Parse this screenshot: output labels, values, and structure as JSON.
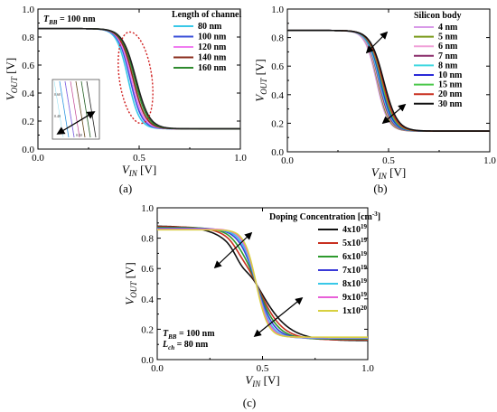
{
  "chart_data": [
    {
      "id": "a",
      "type": "line",
      "panel_label": "(a)",
      "xlabel": "V_IN [V]",
      "ylabel": "V_OUT [V]",
      "xlabel_main": "V",
      "xlabel_sub": "IN",
      "xlabel_unit": " [V]",
      "ylabel_main": "V",
      "ylabel_sub": "OUT",
      "ylabel_unit": " [V]",
      "xlim": [
        0,
        1.0
      ],
      "ylim": [
        0.0,
        1.0
      ],
      "xticks": [
        "0.0",
        "0.5",
        "1.0"
      ],
      "yticks": [
        "0.0",
        "0.2",
        "0.4",
        "0.6",
        "0.8",
        "1.0"
      ],
      "annotation": {
        "main": "T",
        "sub": "BB",
        "rest": " = 100 nm"
      },
      "legend_title": "Length of channel",
      "legend_position": "top-right",
      "vh": 0.86,
      "vl": 0.145,
      "series": [
        {
          "name": "80 nm",
          "color": "#38c8e8",
          "mid": 0.445,
          "steep": 0.028
        },
        {
          "name": "100 nm",
          "color": "#3a4fd8",
          "mid": 0.455,
          "steep": 0.029
        },
        {
          "name": "120 nm",
          "color": "#f07cf0",
          "mid": 0.462,
          "steep": 0.03
        },
        {
          "name": "140 nm",
          "color": "#8a2c1c",
          "mid": 0.47,
          "steep": 0.031
        },
        {
          "name": "160 nm",
          "color": "#2e8a2e",
          "mid": 0.478,
          "steep": 0.032
        }
      ],
      "extra_series": [
        {
          "color": "#222222",
          "mid": 0.484,
          "steep": 0.033
        }
      ],
      "inset_ticks": [
        "0.60",
        "0.40",
        "0.50"
      ]
    },
    {
      "id": "b",
      "type": "line",
      "panel_label": "(b)",
      "xlabel": "V_IN [V]",
      "ylabel": "V_OUT [V]",
      "xlabel_main": "V",
      "xlabel_sub": "IN",
      "xlabel_unit": " [V]",
      "ylabel_main": "V",
      "ylabel_sub": "OUT",
      "ylabel_unit": " [V]",
      "xlim": [
        0,
        1.0
      ],
      "ylim": [
        0.0,
        1.0
      ],
      "xticks": [
        "0.0",
        "0.5",
        "1.0"
      ],
      "yticks": [
        "0.0",
        "0.2",
        "0.4",
        "0.6",
        "0.8",
        "1.0"
      ],
      "legend_title": "Silicon body",
      "legend_position": "top-right",
      "vh": 0.85,
      "vl": 0.145,
      "series": [
        {
          "name": "4 nm",
          "color": "#d89ae8",
          "mid": 0.44,
          "steep": 0.028
        },
        {
          "name": "5 nm",
          "color": "#7a9a1a",
          "mid": 0.445,
          "steep": 0.028
        },
        {
          "name": "6 nm",
          "color": "#f0a0d8",
          "mid": 0.448,
          "steep": 0.029
        },
        {
          "name": "7 nm",
          "color": "#8a2c6a",
          "mid": 0.452,
          "steep": 0.029
        },
        {
          "name": "8 nm",
          "color": "#40d8e0",
          "mid": 0.455,
          "steep": 0.03
        },
        {
          "name": "10 nm",
          "color": "#2a2ad8",
          "mid": 0.46,
          "steep": 0.03
        },
        {
          "name": "15 nm",
          "color": "#4ac84a",
          "mid": 0.465,
          "steep": 0.031
        },
        {
          "name": "20 nm",
          "color": "#c83020",
          "mid": 0.47,
          "steep": 0.032
        },
        {
          "name": "30 nm",
          "color": "#111111",
          "mid": 0.476,
          "steep": 0.033
        }
      ]
    },
    {
      "id": "c",
      "type": "line",
      "panel_label": "(c)",
      "xlabel": "V_IN [V]",
      "ylabel": "V_OUT [V]",
      "xlabel_main": "V",
      "xlabel_sub": "IN",
      "xlabel_unit": " [V]",
      "ylabel_main": "V",
      "ylabel_sub": "OUT",
      "ylabel_unit": " [V]",
      "xlim": [
        0,
        1.0
      ],
      "ylim": [
        0.0,
        1.0
      ],
      "xticks": [
        "0.0",
        "0.5",
        "1.0"
      ],
      "yticks": [
        "0.0",
        "0.2",
        "0.4",
        "0.6",
        "0.8",
        "1.0"
      ],
      "legend_title": "Doping Concentration [cm-3]",
      "legend_title_main": "Doping Concentration [cm",
      "legend_title_sup": "-3",
      "legend_title_end": "]",
      "legend_position": "top-right",
      "annotation_lines": [
        {
          "main": "T",
          "sub": "BB",
          "rest": " = 100 nm"
        },
        {
          "main": "L",
          "sub": "ch",
          "rest": " = 80 nm"
        }
      ],
      "series": [
        {
          "name": "4x10^19",
          "base": "4x10",
          "exp": "19",
          "color": "#111111",
          "vh": 0.88,
          "vl": 0.125,
          "mid": 0.47,
          "steep": 0.075,
          "shoulder": 0.18
        },
        {
          "name": "5x10^19",
          "base": "5x10",
          "exp": "19",
          "color": "#c83020",
          "vh": 0.875,
          "vl": 0.13,
          "mid": 0.47,
          "steep": 0.06,
          "shoulder": 0.1
        },
        {
          "name": "6x10^19",
          "base": "6x10",
          "exp": "19",
          "color": "#2e9a2e",
          "vh": 0.87,
          "vl": 0.135,
          "mid": 0.47,
          "steep": 0.05,
          "shoulder": 0.05
        },
        {
          "name": "7x10^19",
          "base": "7x10",
          "exp": "19",
          "color": "#3a3ad8",
          "vh": 0.865,
          "vl": 0.14,
          "mid": 0.47,
          "steep": 0.042,
          "shoulder": 0.0
        },
        {
          "name": "8x10^19",
          "base": "8x10",
          "exp": "19",
          "color": "#38c8e8",
          "vh": 0.86,
          "vl": 0.142,
          "mid": 0.47,
          "steep": 0.036,
          "shoulder": 0.0
        },
        {
          "name": "9x10^19",
          "base": "9x10",
          "exp": "19",
          "color": "#e860d8",
          "vh": 0.86,
          "vl": 0.145,
          "mid": 0.47,
          "steep": 0.032,
          "shoulder": 0.0
        },
        {
          "name": "1x10^20",
          "base": "1x10",
          "exp": "20",
          "color": "#d8d040",
          "vh": 0.855,
          "vl": 0.148,
          "mid": 0.47,
          "steep": 0.028,
          "shoulder": 0.0
        }
      ]
    }
  ]
}
